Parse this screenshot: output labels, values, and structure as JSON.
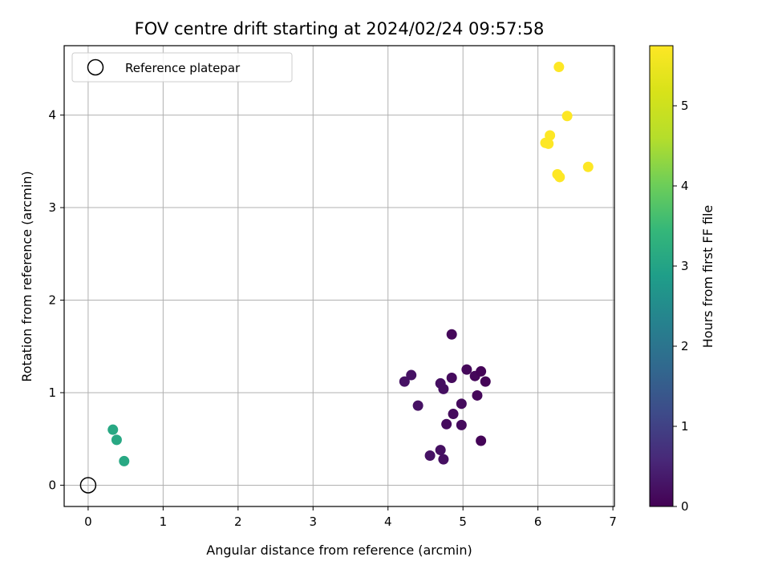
{
  "chart_data": {
    "type": "scatter",
    "title": "FOV centre drift starting at 2024/02/24 09:57:58",
    "xlabel": "Angular distance from reference (arcmin)",
    "ylabel": "Rotation from reference (arcmin)",
    "xlim": [
      -0.32,
      7.02
    ],
    "ylim": [
      -0.23,
      4.75
    ],
    "xticks": [
      0,
      1,
      2,
      3,
      4,
      5,
      6,
      7
    ],
    "yticks": [
      0,
      1,
      2,
      3,
      4
    ],
    "grid": true,
    "legend": {
      "placement": "top-left",
      "entries": [
        "Reference platepar"
      ]
    },
    "reference_point": {
      "name": "Reference platepar",
      "x": 0,
      "y": 0
    },
    "colorbar": {
      "label": "Hours from first FF file",
      "colormap": "viridis",
      "range": [
        0,
        5.75
      ],
      "ticks": [
        0,
        1,
        2,
        3,
        4,
        5
      ]
    },
    "points": [
      {
        "x": 0.33,
        "y": 0.6,
        "c": 3.1
      },
      {
        "x": 0.38,
        "y": 0.49,
        "c": 3.1
      },
      {
        "x": 0.48,
        "y": 0.26,
        "c": 3.1
      },
      {
        "x": 4.22,
        "y": 1.12,
        "c": 0.25
      },
      {
        "x": 4.31,
        "y": 1.19,
        "c": 0.25
      },
      {
        "x": 4.4,
        "y": 0.86,
        "c": 0.25
      },
      {
        "x": 4.56,
        "y": 0.32,
        "c": 0.25
      },
      {
        "x": 4.7,
        "y": 0.38,
        "c": 0.2
      },
      {
        "x": 4.74,
        "y": 0.28,
        "c": 0.2
      },
      {
        "x": 4.7,
        "y": 1.1,
        "c": 0.2
      },
      {
        "x": 4.74,
        "y": 1.04,
        "c": 0.2
      },
      {
        "x": 4.78,
        "y": 0.66,
        "c": 0.15
      },
      {
        "x": 4.85,
        "y": 1.16,
        "c": 0.15
      },
      {
        "x": 4.85,
        "y": 1.63,
        "c": 0.1
      },
      {
        "x": 4.87,
        "y": 0.77,
        "c": 0.15
      },
      {
        "x": 4.98,
        "y": 0.88,
        "c": 0.15
      },
      {
        "x": 4.98,
        "y": 0.65,
        "c": 0.15
      },
      {
        "x": 5.05,
        "y": 1.25,
        "c": 0.1
      },
      {
        "x": 5.16,
        "y": 1.18,
        "c": 0.1
      },
      {
        "x": 5.19,
        "y": 0.97,
        "c": 0.1
      },
      {
        "x": 5.24,
        "y": 1.23,
        "c": 0.05
      },
      {
        "x": 5.24,
        "y": 0.48,
        "c": 0.05
      },
      {
        "x": 5.3,
        "y": 1.12,
        "c": 0.05
      },
      {
        "x": 6.28,
        "y": 4.52,
        "c": 5.75
      },
      {
        "x": 6.39,
        "y": 3.99,
        "c": 5.75
      },
      {
        "x": 6.16,
        "y": 3.78,
        "c": 5.75
      },
      {
        "x": 6.1,
        "y": 3.7,
        "c": 5.75
      },
      {
        "x": 6.14,
        "y": 3.69,
        "c": 5.75
      },
      {
        "x": 6.67,
        "y": 3.44,
        "c": 5.75
      },
      {
        "x": 6.26,
        "y": 3.36,
        "c": 5.75
      },
      {
        "x": 6.29,
        "y": 3.33,
        "c": 5.75
      }
    ]
  }
}
